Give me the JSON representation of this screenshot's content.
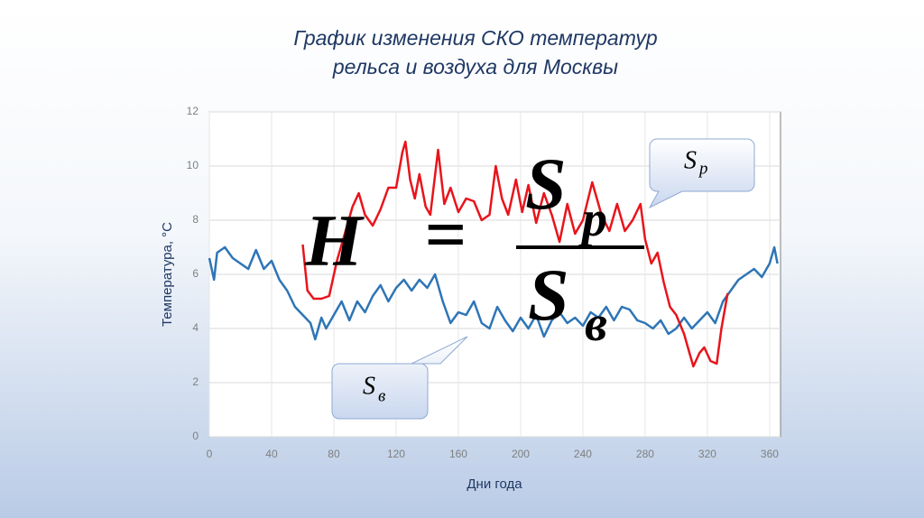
{
  "chart_data": {
    "type": "line",
    "title": [
      "График изменения СКО температур",
      "рельса и воздуха для Москвы"
    ],
    "ylabel": "Температура, °С",
    "xlabel": "Дни года",
    "xlim": [
      0,
      367
    ],
    "ylim": [
      0,
      12
    ],
    "xticks": [
      0,
      40,
      80,
      120,
      160,
      200,
      240,
      280,
      320,
      360
    ],
    "yticks": [
      0,
      2,
      4,
      6,
      8,
      10,
      12
    ],
    "grid": true,
    "series": [
      {
        "name": "Sв",
        "color": "#2e75b6",
        "x": [
          0,
          3,
          5,
          10,
          15,
          20,
          25,
          30,
          35,
          40,
          45,
          50,
          55,
          60,
          65,
          68,
          72,
          75,
          80,
          85,
          90,
          95,
          100,
          105,
          110,
          115,
          120,
          125,
          130,
          135,
          140,
          145,
          150,
          155,
          160,
          165,
          170,
          175,
          180,
          185,
          190,
          195,
          200,
          205,
          210,
          215,
          220,
          225,
          230,
          235,
          240,
          245,
          250,
          255,
          260,
          265,
          270,
          275,
          280,
          285,
          290,
          295,
          300,
          305,
          310,
          315,
          320,
          325,
          330,
          335,
          340,
          345,
          350,
          355,
          360,
          363,
          365
        ],
        "values": [
          6.6,
          5.8,
          6.8,
          7.0,
          6.6,
          6.4,
          6.2,
          6.9,
          6.2,
          6.5,
          5.8,
          5.4,
          4.8,
          4.5,
          4.2,
          3.6,
          4.4,
          4.0,
          4.5,
          5.0,
          4.3,
          5.0,
          4.6,
          5.2,
          5.6,
          5.0,
          5.5,
          5.8,
          5.4,
          5.8,
          5.5,
          6.0,
          5.0,
          4.2,
          4.6,
          4.5,
          5.0,
          4.2,
          4.0,
          4.8,
          4.3,
          3.9,
          4.4,
          4.0,
          4.5,
          3.7,
          4.3,
          4.6,
          4.2,
          4.4,
          4.1,
          4.6,
          4.4,
          4.8,
          4.3,
          4.8,
          4.7,
          4.3,
          4.2,
          4.0,
          4.3,
          3.8,
          4.0,
          4.4,
          4.0,
          4.3,
          4.6,
          4.2,
          5.0,
          5.4,
          5.8,
          6.0,
          6.2,
          5.9,
          6.4,
          7.0,
          6.4
        ]
      },
      {
        "name": "Sр",
        "color": "#e8141b",
        "x": [
          60,
          63,
          67,
          72,
          77,
          82,
          87,
          92,
          96,
          100,
          105,
          110,
          115,
          120,
          124,
          126,
          129,
          132,
          135,
          139,
          142,
          147,
          151,
          155,
          160,
          165,
          170,
          175,
          180,
          184,
          188,
          192,
          197,
          201,
          205,
          210,
          215,
          220,
          225,
          230,
          235,
          240,
          246,
          252,
          257,
          262,
          267,
          272,
          277,
          280,
          284,
          288,
          292,
          296,
          300,
          305,
          308,
          311,
          315,
          318,
          322,
          326,
          329,
          333
        ],
        "values": [
          7.1,
          5.4,
          5.1,
          5.1,
          5.2,
          6.5,
          7.5,
          8.5,
          9.0,
          8.2,
          7.8,
          8.4,
          9.2,
          9.2,
          10.5,
          10.9,
          9.5,
          8.8,
          9.7,
          8.5,
          8.2,
          10.6,
          8.6,
          9.2,
          8.3,
          8.8,
          8.7,
          8.0,
          8.2,
          10.0,
          8.8,
          8.2,
          9.5,
          8.3,
          9.3,
          7.9,
          9.0,
          8.2,
          7.2,
          8.6,
          7.5,
          8.0,
          9.4,
          8.2,
          7.6,
          8.6,
          7.6,
          8.0,
          8.6,
          7.3,
          6.4,
          6.8,
          5.7,
          4.8,
          4.5,
          3.8,
          3.2,
          2.6,
          3.1,
          3.3,
          2.8,
          2.7,
          4.0,
          5.3
        ]
      }
    ],
    "formula": {
      "lhs": "H",
      "eq": "=",
      "num": "S",
      "num_sub": "p",
      "den": "S",
      "den_sub": "в"
    },
    "callouts": [
      {
        "text": "S",
        "sub": "р"
      },
      {
        "text": "S",
        "sub": "в"
      }
    ]
  }
}
